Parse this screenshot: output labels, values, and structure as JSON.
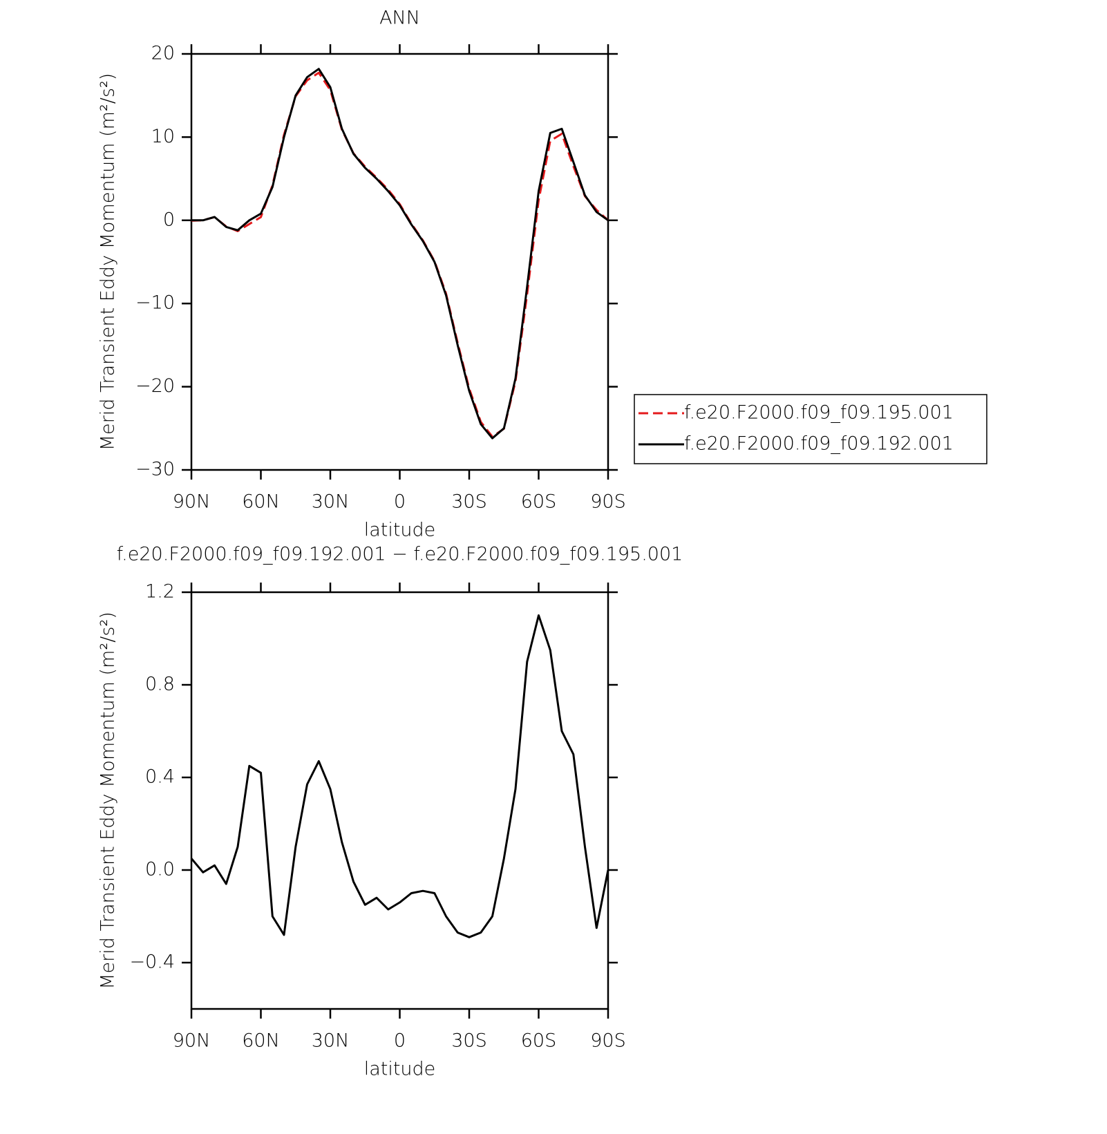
{
  "chart_data": [
    {
      "type": "line",
      "title": "ANN",
      "xlabel": "latitude",
      "ylabel": "Merid Transient Eddy Momentum (m²/s²)",
      "x": [
        90,
        85,
        80,
        75,
        70,
        65,
        60,
        55,
        50,
        45,
        40,
        35,
        30,
        25,
        20,
        15,
        10,
        5,
        0,
        -5,
        -10,
        -15,
        -20,
        -25,
        -30,
        -35,
        -40,
        -45,
        -50,
        -55,
        -60,
        -65,
        -70,
        -75,
        -80,
        -85,
        -90
      ],
      "xlim": [
        90,
        -90
      ],
      "xticks": [
        {
          "value": 90,
          "label": "90N"
        },
        {
          "value": 60,
          "label": "60N"
        },
        {
          "value": 30,
          "label": "30N"
        },
        0,
        {
          "value": -30,
          "label": "30S"
        },
        {
          "value": -60,
          "label": "60S"
        },
        {
          "value": -90,
          "label": "90S"
        }
      ],
      "ylim": [
        -30,
        20
      ],
      "yticks": [
        {
          "value": -30,
          "label": "−30"
        },
        {
          "value": -20,
          "label": "−20"
        },
        {
          "value": -10,
          "label": "−10"
        },
        0,
        10,
        20
      ],
      "legend": "right",
      "series": [
        {
          "name": "f.e20.F2000.f09_f09.195.001",
          "color": "#e41a1c",
          "line_style": "dashed",
          "values": [
            -0.05,
            0.01,
            0.38,
            -0.74,
            -1.3,
            -0.45,
            0.38,
            4.2,
            10.28,
            14.9,
            16.83,
            17.73,
            15.65,
            10.88,
            8.05,
            6.45,
            5.12,
            3.67,
            1.94,
            -0.4,
            -2.41,
            -4.9,
            -8.8,
            -14.73,
            -20.21,
            -24.23,
            -26.0,
            -25.05,
            -19.35,
            -8.9,
            2.4,
            9.55,
            10.4,
            6.5,
            2.9,
            1.25,
            0
          ]
        },
        {
          "name": "f.e20.F2000.f09_f09.192.001",
          "color": "#000000",
          "line_style": "solid",
          "values": [
            0,
            0,
            0.4,
            -0.8,
            -1.2,
            0,
            0.8,
            4,
            10,
            15,
            17.2,
            18.2,
            16,
            11,
            8,
            6.3,
            5,
            3.5,
            1.8,
            -0.5,
            -2.5,
            -5,
            -9,
            -15,
            -20.5,
            -24.5,
            -26.2,
            -25,
            -19,
            -8,
            3.5,
            10.5,
            11,
            7,
            3,
            1,
            0
          ]
        }
      ]
    },
    {
      "type": "line",
      "title": "f.e20.F2000.f09_f09.192.001 − f.e20.F2000.f09_f09.195.001",
      "xlabel": "latitude",
      "ylabel": "Merid Transient Eddy Momentum (m²/s²)",
      "x": [
        90,
        85,
        80,
        75,
        70,
        65,
        60,
        55,
        50,
        45,
        40,
        35,
        30,
        25,
        20,
        15,
        10,
        5,
        0,
        -5,
        -10,
        -15,
        -20,
        -25,
        -30,
        -35,
        -40,
        -45,
        -50,
        -55,
        -60,
        -65,
        -70,
        -75,
        -80,
        -85,
        -90
      ],
      "xlim": [
        90,
        -90
      ],
      "xticks": [
        {
          "value": 90,
          "label": "90N"
        },
        {
          "value": 60,
          "label": "60N"
        },
        {
          "value": 30,
          "label": "30N"
        },
        0,
        {
          "value": -30,
          "label": "30S"
        },
        {
          "value": -60,
          "label": "60S"
        },
        {
          "value": -90,
          "label": "90S"
        }
      ],
      "ylim": [
        -0.6,
        1.2
      ],
      "yticks": [
        {
          "value": -0.4,
          "label": "−0.4"
        },
        {
          "value": 0,
          "label": "0.0"
        },
        0.4,
        0.8,
        1.2
      ],
      "series": [
        {
          "color": "#000000",
          "line_style": "solid",
          "values": [
            0.05,
            -0.01,
            0.02,
            -0.06,
            0.1,
            0.45,
            0.42,
            -0.2,
            -0.28,
            0.1,
            0.37,
            0.47,
            0.35,
            0.12,
            -0.05,
            -0.15,
            -0.12,
            -0.17,
            -0.14,
            -0.1,
            -0.09,
            -0.1,
            -0.2,
            -0.27,
            -0.29,
            -0.27,
            -0.2,
            0.05,
            0.35,
            0.9,
            1.1,
            0.95,
            0.6,
            0.5,
            0.1,
            -0.25,
            0
          ]
        }
      ]
    }
  ]
}
